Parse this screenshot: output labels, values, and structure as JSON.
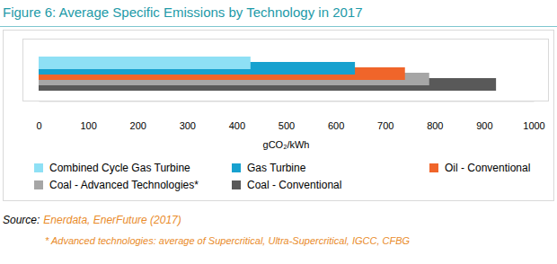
{
  "chart_data": {
    "type": "bar",
    "orientation": "horizontal",
    "title": "Figure 6: Average Specific Emissions by Technology in 2017",
    "x_label": "gCO₂/kWh",
    "categories": [
      null
    ],
    "series": [
      {
        "name": "Combined Cycle Gas Turbine",
        "color": "#8ee0f5",
        "values": [
          428
        ]
      },
      {
        "name": "Gas Turbine",
        "color": "#17a1cf",
        "values": [
          639
        ]
      },
      {
        "name": "Oil - Conventional",
        "color": "#f0652a",
        "values": [
          740
        ]
      },
      {
        "name": "Coal - Advanced Technologies*",
        "color": "#a6a6a6",
        "values": [
          789
        ]
      },
      {
        "name": "Coal - Conventional",
        "color": "#595959",
        "values": [
          924
        ]
      }
    ],
    "xlim": [
      0,
      1000
    ],
    "xticks": [
      0,
      100,
      200,
      300,
      400,
      500,
      600,
      700,
      800,
      900,
      1000
    ],
    "grid": false,
    "legend": "bottom",
    "tick_labels": "x",
    "source_label": "Source:",
    "source": "Enerdata, EnerFuture (2017)",
    "footnote": "* Advanced technologies: average of Supercritical, Ultra-Supercritical, IGCC, CFBG"
  }
}
